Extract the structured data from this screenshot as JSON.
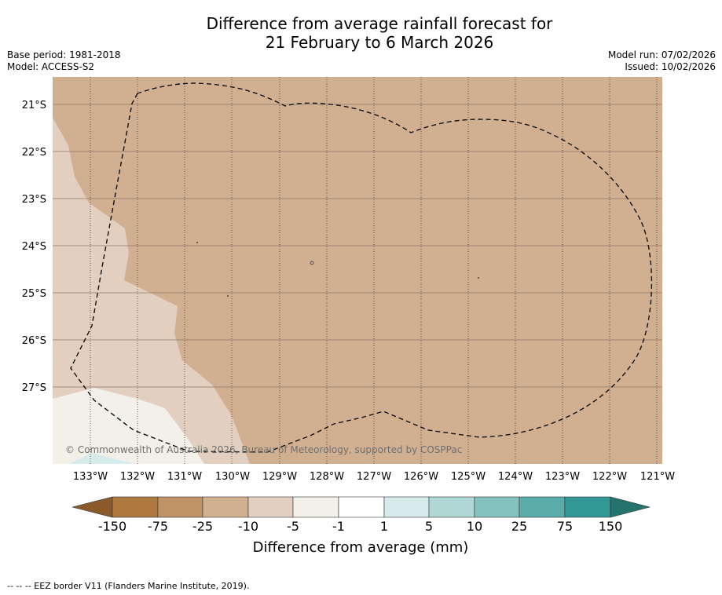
{
  "title": {
    "line1": "Difference from average rainfall forecast for",
    "line2": "21 February to 6 March 2026"
  },
  "meta": {
    "base_period": "Base period: 1981-2018",
    "model": "Model: ACCESS-S2",
    "model_run": "Model run: 07/02/2026",
    "issued": "Issued: 10/02/2026"
  },
  "map": {
    "latitude_labels": [
      "21°S",
      "22°S",
      "23°S",
      "24°S",
      "25°S",
      "26°S",
      "27°S"
    ],
    "longitude_labels": [
      "133°W",
      "132°W",
      "131°W",
      "130°W",
      "129°W",
      "128°W",
      "127°W",
      "126°W",
      "125°W",
      "124°W",
      "123°W",
      "122°W",
      "121°W"
    ],
    "copyright": "© Commonwealth of Australia 2026, Bureau of Meteorology, supported by COSPPac",
    "dominant_category": "-25 to -10"
  },
  "colorbar": {
    "title": "Difference from average (mm)",
    "tick_labels": [
      "-150",
      "-75",
      "-25",
      "-10",
      "-5",
      "-1",
      "1",
      "5",
      "10",
      "25",
      "75",
      "150"
    ],
    "colors": {
      "lt_-150": "#8a5a2b",
      "-150_-75": "#ad773e",
      "-75_-25": "#c09268",
      "-25_-10": "#d1b092",
      "-10_-5": "#e2cfbf",
      "-5_-1": "#f3efe9",
      "-1_1": "#ffffff",
      "1_5": "#d6ecea",
      "5_10": "#aed7d6",
      "10_25": "#84c2bf",
      "25_75": "#5aacaa",
      "75_150": "#319895",
      "gt_150": "#24736f"
    }
  },
  "footer": "--  --  -- EEZ border V11 (Flanders Marine Institute, 2019)."
}
